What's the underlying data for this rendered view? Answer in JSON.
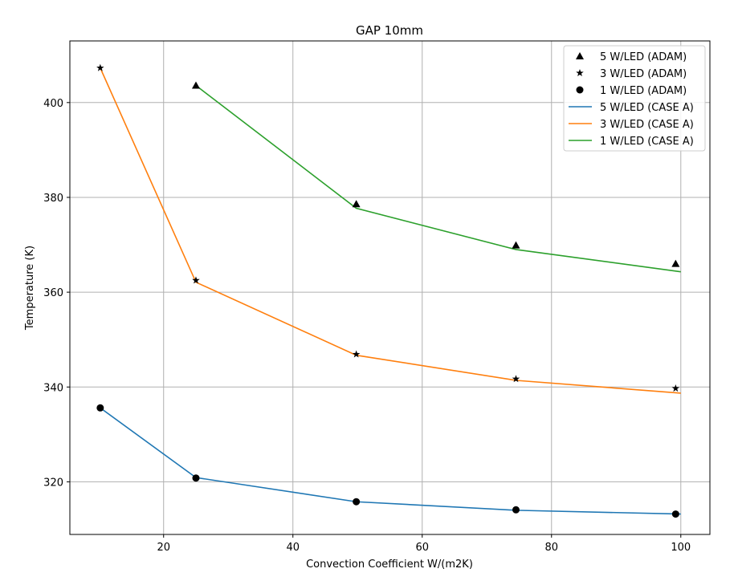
{
  "chart_data": {
    "type": "line",
    "title": "GAP 10mm",
    "xlabel": "Convection Coefficient W/(m2K)",
    "ylabel": "Temperature (K)",
    "xlim": [
      5.5,
      104.5
    ],
    "ylim": [
      308.9,
      413.0
    ],
    "xticks": [
      20,
      40,
      60,
      80,
      100
    ],
    "yticks": [
      320,
      340,
      360,
      380,
      400
    ],
    "grid": true,
    "legend_position": "top-right",
    "marker_series": [
      {
        "name": "5 W/LED (ADAM)",
        "marker": "triangle",
        "color": "#000000",
        "x": [
          25,
          49.8,
          74.5,
          99.2
        ],
        "y": [
          403.6,
          378.6,
          369.9,
          366.0
        ]
      },
      {
        "name": "3 W/LED (ADAM)",
        "marker": "star",
        "color": "#000000",
        "x": [
          10.2,
          25,
          49.8,
          74.5,
          99.2
        ],
        "y": [
          407.3,
          362.5,
          346.9,
          341.7,
          339.7
        ]
      },
      {
        "name": "1 W/LED (ADAM)",
        "marker": "circle",
        "color": "#000000",
        "x": [
          10.2,
          25,
          49.8,
          74.5,
          99.2
        ],
        "y": [
          335.6,
          320.8,
          315.8,
          314.1,
          313.2
        ]
      }
    ],
    "line_series": [
      {
        "name": "5 W/LED (CASE A)",
        "color": "#1f77b4",
        "x": [
          10.2,
          25,
          49.8,
          74.5,
          100
        ],
        "y": [
          335.6,
          320.9,
          315.8,
          314.0,
          313.2
        ]
      },
      {
        "name": "3 W/LED (CASE A)",
        "color": "#ff7f0e",
        "x": [
          10.2,
          25,
          49.8,
          74.5,
          100
        ],
        "y": [
          407.3,
          362.1,
          346.7,
          341.4,
          338.7
        ]
      },
      {
        "name": "1 W/LED (CASE A)",
        "color": "#2ca02c",
        "x": [
          25,
          49.8,
          74.5,
          100
        ],
        "y": [
          403.6,
          377.7,
          369.0,
          364.3
        ]
      }
    ]
  }
}
